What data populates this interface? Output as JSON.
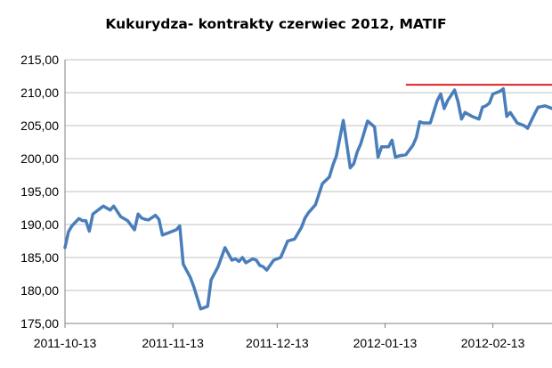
{
  "chart_data": {
    "type": "line",
    "title": "Kukurydza- kontrakty czerwiec 2012, MATIF",
    "xlabel": "",
    "ylabel": "",
    "ylim": [
      175,
      215
    ],
    "yticks": [
      "175,00",
      "180,00",
      "185,00",
      "190,00",
      "195,00",
      "200,00",
      "205,00",
      "210,00",
      "215,00"
    ],
    "xlim": [
      "2011-10-13",
      "2012-03-01"
    ],
    "xticks": [
      "2011-10-13",
      "2011-11-13",
      "2011-12-13",
      "2012-01-13",
      "2012-02-13"
    ],
    "grid": "horizontal",
    "legend": "none",
    "colors": {
      "series": "#4a7ebb",
      "reference_line": "#e02020",
      "grid": "#c0c0c0"
    },
    "series": [
      {
        "x": [
          "2011-10-13",
          "2011-10-14",
          "2011-10-15",
          "2011-10-17",
          "2011-10-18",
          "2011-10-19",
          "2011-10-20",
          "2011-10-21",
          "2011-10-22",
          "2011-10-24",
          "2011-10-26",
          "2011-10-27",
          "2011-10-28",
          "2011-10-29",
          "2011-10-31",
          "2011-11-02",
          "2011-11-03",
          "2011-11-04",
          "2011-11-05",
          "2011-11-06",
          "2011-11-08",
          "2011-11-09",
          "2011-11-10",
          "2011-11-11",
          "2011-11-12",
          "2011-11-14",
          "2011-11-15",
          "2011-11-16",
          "2011-11-18",
          "2011-11-19",
          "2011-11-21",
          "2011-11-23",
          "2011-11-24",
          "2011-11-25",
          "2011-11-26",
          "2011-11-28",
          "2011-11-30",
          "2011-12-01",
          "2011-12-02",
          "2011-12-03",
          "2011-12-04",
          "2011-12-06",
          "2011-12-07",
          "2011-12-08",
          "2011-12-09",
          "2011-12-10",
          "2011-12-12",
          "2011-12-14",
          "2011-12-15",
          "2011-12-16",
          "2011-12-18",
          "2011-12-20",
          "2011-12-21",
          "2011-12-22",
          "2011-12-24",
          "2011-12-26",
          "2011-12-28",
          "2011-12-29",
          "2011-12-30",
          "2012-01-01",
          "2012-01-03",
          "2012-01-04",
          "2012-01-05",
          "2012-01-06",
          "2012-01-08",
          "2012-01-10",
          "2012-01-11",
          "2012-01-12",
          "2012-01-14",
          "2012-01-15",
          "2012-01-16",
          "2012-01-17",
          "2012-01-19",
          "2012-01-21",
          "2012-01-22",
          "2012-01-23",
          "2012-01-24",
          "2012-01-26",
          "2012-01-28",
          "2012-01-29",
          "2012-01-30",
          "2012-01-31",
          "2012-02-02",
          "2012-02-03",
          "2012-02-04",
          "2012-02-05",
          "2012-02-07",
          "2012-02-09",
          "2012-02-10",
          "2012-02-11",
          "2012-02-12",
          "2012-02-13",
          "2012-02-15",
          "2012-02-16",
          "2012-02-17",
          "2012-02-18",
          "2012-02-20",
          "2012-02-22",
          "2012-02-23",
          "2012-02-25",
          "2012-02-26",
          "2012-02-28",
          "2012-03-01"
        ],
        "values": [
          186.5,
          188.9,
          189.8,
          190.9,
          190.6,
          190.6,
          189.0,
          191.6,
          192.0,
          192.8,
          192.2,
          192.8,
          192.0,
          191.2,
          190.6,
          189.2,
          191.6,
          191.0,
          190.8,
          190.7,
          191.4,
          190.8,
          188.4,
          188.6,
          188.8,
          189.2,
          189.8,
          184.0,
          182.0,
          180.6,
          177.2,
          177.6,
          181.6,
          182.6,
          183.6,
          186.5,
          184.6,
          184.8,
          184.4,
          185.0,
          184.2,
          184.8,
          184.6,
          183.8,
          183.6,
          183.1,
          184.6,
          185.0,
          186.2,
          187.5,
          187.8,
          189.6,
          191.0,
          191.8,
          193.0,
          196.2,
          197.2,
          199.0,
          200.4,
          205.8,
          198.6,
          199.2,
          201.0,
          202.2,
          205.7,
          204.8,
          200.2,
          201.8,
          201.8,
          202.8,
          200.2,
          200.4,
          200.6,
          202.0,
          203.2,
          205.6,
          205.4,
          205.4,
          208.8,
          209.8,
          207.6,
          208.8,
          210.4,
          208.6,
          206.0,
          207.0,
          206.4,
          206.0,
          207.8,
          208.0,
          208.4,
          209.8,
          210.2,
          210.6,
          206.4,
          207.0,
          205.4,
          205.0,
          204.6,
          206.8,
          207.8,
          208.0,
          207.6
        ]
      }
    ],
    "reference_line": {
      "y": 211.2,
      "x_start": "2012-01-19",
      "x_end": "2012-03-01"
    }
  }
}
